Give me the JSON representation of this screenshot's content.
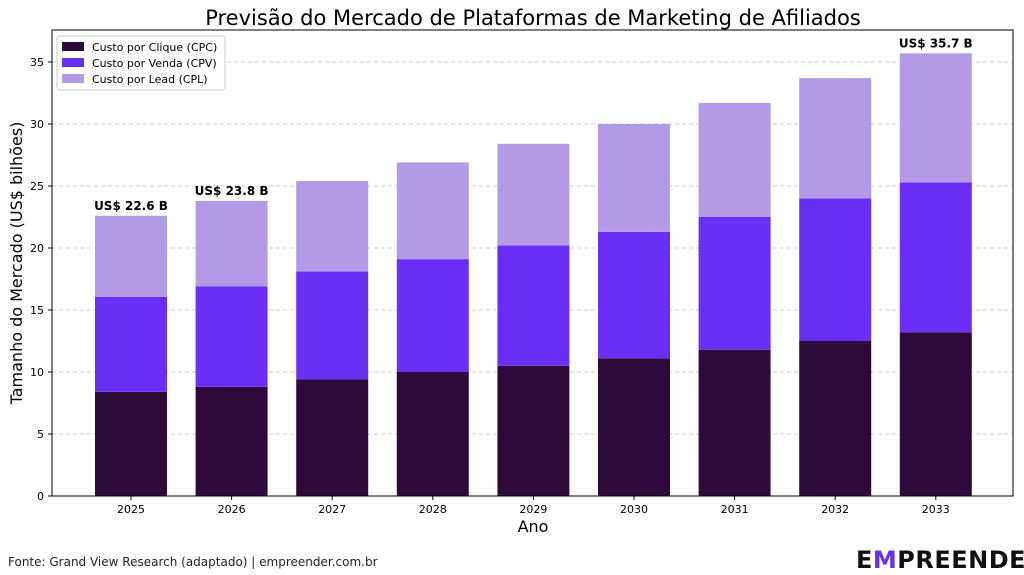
{
  "chart_data": {
    "type": "bar",
    "stacked": true,
    "title": "Previsão do Mercado de Plataformas de Marketing de Afiliados",
    "xlabel": "Ano",
    "ylabel": "Tamanho do Mercado (US$ bilhões)",
    "ylim": [
      0,
      37.5
    ],
    "yticks": [
      0,
      5,
      10,
      15,
      20,
      25,
      30,
      35
    ],
    "grid": true,
    "legend_position": "top-left",
    "categories": [
      "2025",
      "2026",
      "2027",
      "2028",
      "2029",
      "2030",
      "2031",
      "2032",
      "2033"
    ],
    "series": [
      {
        "name": "Custo por Clique (CPC)",
        "color": "#2d0a3a",
        "values": [
          8.4,
          8.8,
          9.4,
          10.0,
          10.5,
          11.1,
          11.8,
          12.5,
          13.2
        ]
      },
      {
        "name": "Custo por Venda (CPV)",
        "color": "#6a2ff5",
        "values": [
          7.65,
          8.1,
          8.7,
          9.1,
          9.7,
          10.2,
          10.7,
          11.5,
          12.1
        ]
      },
      {
        "name": "Custo por Lead (CPL)",
        "color": "#b39ae6",
        "values": [
          6.55,
          6.9,
          7.3,
          7.8,
          8.2,
          8.7,
          9.2,
          9.7,
          10.4
        ]
      }
    ],
    "annotations": [
      {
        "category": "2025",
        "text": "US$ 22.6 B"
      },
      {
        "category": "2026",
        "text": "US$ 23.8 B"
      },
      {
        "category": "2033",
        "text": "US$ 35.7 B"
      }
    ]
  },
  "footer": {
    "source": "Fonte: Grand View Research (adaptado) | empreender.com.br",
    "logo": "EMPREENDER"
  }
}
